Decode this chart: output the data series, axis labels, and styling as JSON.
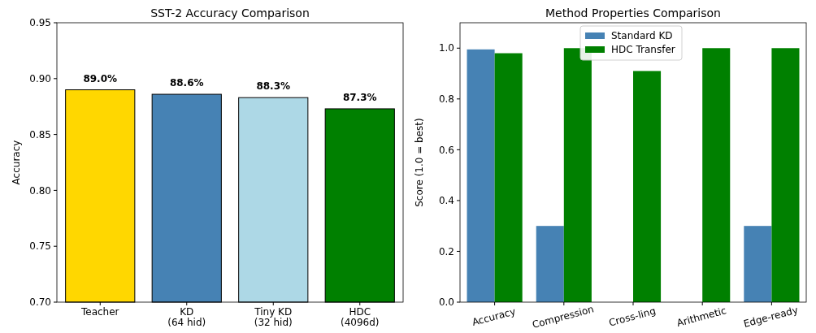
{
  "chart_data": [
    {
      "type": "bar",
      "title": "SST-2 Accuracy Comparison",
      "ylabel": "Accuracy",
      "categories": [
        "Teacher",
        "KD\n(64 hid)",
        "Tiny KD\n(32 hid)",
        "HDC\n(4096d)"
      ],
      "values": [
        0.89,
        0.886,
        0.883,
        0.873
      ],
      "colors": [
        "#ffd700",
        "#4682b4",
        "#add8e6",
        "#008000"
      ],
      "value_labels": [
        "89.0%",
        "88.6%",
        "88.3%",
        "87.3%"
      ],
      "ylim": [
        0.7,
        0.95
      ],
      "yticks": [
        {
          "value": 0.7,
          "label": "0.70"
        },
        0.75,
        {
          "value": 0.8,
          "label": "0.80"
        },
        0.85,
        {
          "value": 0.9,
          "label": "0.90"
        },
        0.95
      ]
    },
    {
      "type": "bar",
      "title": "Method Properties Comparison",
      "ylabel": "Score (1.0 = best)",
      "categories": [
        "Accuracy",
        "Compression",
        "Cross-ling",
        "Arithmetic",
        "Edge-ready"
      ],
      "legend": "top",
      "series": [
        {
          "name": "Standard KD",
          "color": "#4682b4",
          "values": [
            0.995,
            0.3,
            0,
            0,
            0.3
          ]
        },
        {
          "name": "HDC Transfer",
          "color": "#008000",
          "values": [
            0.98,
            1.0,
            0.91,
            1.0,
            1.0
          ]
        }
      ],
      "ylim": [
        0,
        1.1
      ],
      "yticks": [
        {
          "value": 0,
          "label": "0.0"
        },
        0.2,
        0.4,
        0.6,
        0.8,
        {
          "value": 1,
          "label": "1.0"
        }
      ]
    }
  ]
}
